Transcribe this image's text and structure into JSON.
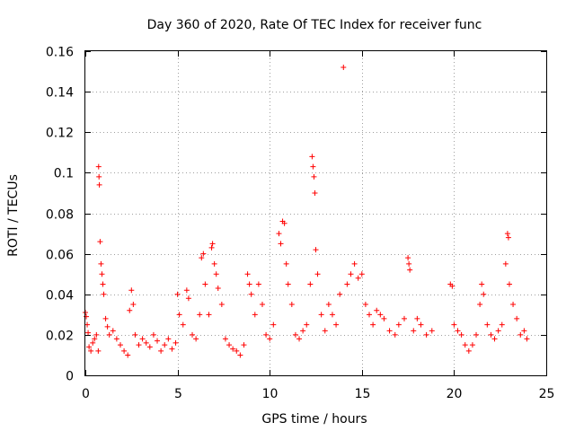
{
  "chart_data": {
    "type": "scatter",
    "title": "Day 360 of 2020, Rate Of TEC Index for receiver func",
    "xlabel": "GPS time / hours",
    "ylabel": "ROTI / TECUs",
    "xlim": [
      0,
      25
    ],
    "ylim": [
      0,
      0.16
    ],
    "x_ticks": [
      0,
      5,
      10,
      15,
      20,
      25
    ],
    "x_tick_labels": [
      "0",
      "5",
      "10",
      "15",
      "20",
      "25"
    ],
    "y_ticks": [
      0,
      0.02,
      0.04,
      0.06,
      0.08,
      0.1,
      0.12,
      0.14,
      0.16
    ],
    "y_tick_labels": [
      "0",
      "0.02",
      "0.04",
      "0.06",
      "0.08",
      "0.1",
      "0.12",
      "0.14",
      "0.16"
    ],
    "grid": true,
    "legend": "none",
    "marker": "+",
    "colors": {
      "points": "#ff0000",
      "grid": "#a0a0a0",
      "axes": "#000000"
    },
    "series": [
      {
        "points": [
          [
            0.0,
            0.031
          ],
          [
            0.05,
            0.029
          ],
          [
            0.1,
            0.025
          ],
          [
            0.15,
            0.021
          ],
          [
            0.2,
            0.014
          ],
          [
            0.3,
            0.012
          ],
          [
            0.4,
            0.016
          ],
          [
            0.5,
            0.018
          ],
          [
            0.6,
            0.02
          ],
          [
            0.7,
            0.012
          ],
          [
            0.72,
            0.103
          ],
          [
            0.74,
            0.098
          ],
          [
            0.76,
            0.094
          ],
          [
            0.8,
            0.066
          ],
          [
            0.85,
            0.055
          ],
          [
            0.9,
            0.05
          ],
          [
            0.95,
            0.045
          ],
          [
            1.0,
            0.04
          ],
          [
            1.1,
            0.028
          ],
          [
            1.2,
            0.024
          ],
          [
            1.3,
            0.02
          ],
          [
            1.5,
            0.022
          ],
          [
            1.7,
            0.018
          ],
          [
            1.9,
            0.015
          ],
          [
            2.1,
            0.012
          ],
          [
            2.3,
            0.01
          ],
          [
            2.4,
            0.032
          ],
          [
            2.5,
            0.042
          ],
          [
            2.6,
            0.035
          ],
          [
            2.7,
            0.02
          ],
          [
            2.9,
            0.015
          ],
          [
            3.1,
            0.018
          ],
          [
            3.3,
            0.016
          ],
          [
            3.5,
            0.014
          ],
          [
            3.7,
            0.02
          ],
          [
            3.9,
            0.017
          ],
          [
            4.1,
            0.012
          ],
          [
            4.3,
            0.015
          ],
          [
            4.5,
            0.018
          ],
          [
            4.7,
            0.013
          ],
          [
            4.9,
            0.016
          ],
          [
            5.0,
            0.04
          ],
          [
            5.1,
            0.03
          ],
          [
            5.3,
            0.025
          ],
          [
            5.5,
            0.042
          ],
          [
            5.6,
            0.038
          ],
          [
            5.8,
            0.02
          ],
          [
            6.0,
            0.018
          ],
          [
            6.2,
            0.03
          ],
          [
            6.3,
            0.058
          ],
          [
            6.4,
            0.06
          ],
          [
            6.5,
            0.045
          ],
          [
            6.7,
            0.03
          ],
          [
            6.85,
            0.063
          ],
          [
            6.9,
            0.065
          ],
          [
            7.0,
            0.055
          ],
          [
            7.1,
            0.05
          ],
          [
            7.2,
            0.043
          ],
          [
            7.4,
            0.035
          ],
          [
            7.6,
            0.018
          ],
          [
            7.8,
            0.015
          ],
          [
            8.0,
            0.013
          ],
          [
            8.2,
            0.012
          ],
          [
            8.4,
            0.01
          ],
          [
            8.6,
            0.015
          ],
          [
            8.8,
            0.05
          ],
          [
            8.9,
            0.045
          ],
          [
            9.0,
            0.04
          ],
          [
            9.2,
            0.03
          ],
          [
            9.4,
            0.045
          ],
          [
            9.6,
            0.035
          ],
          [
            9.8,
            0.02
          ],
          [
            10.0,
            0.018
          ],
          [
            10.2,
            0.025
          ],
          [
            10.5,
            0.07
          ],
          [
            10.6,
            0.065
          ],
          [
            10.7,
            0.076
          ],
          [
            10.8,
            0.075
          ],
          [
            10.9,
            0.055
          ],
          [
            11.0,
            0.045
          ],
          [
            11.2,
            0.035
          ],
          [
            11.4,
            0.02
          ],
          [
            11.6,
            0.018
          ],
          [
            11.8,
            0.022
          ],
          [
            12.0,
            0.025
          ],
          [
            12.2,
            0.045
          ],
          [
            12.3,
            0.108
          ],
          [
            12.35,
            0.103
          ],
          [
            12.4,
            0.098
          ],
          [
            12.45,
            0.09
          ],
          [
            12.5,
            0.062
          ],
          [
            12.6,
            0.05
          ],
          [
            12.8,
            0.03
          ],
          [
            13.0,
            0.022
          ],
          [
            13.2,
            0.035
          ],
          [
            13.4,
            0.03
          ],
          [
            13.6,
            0.025
          ],
          [
            13.8,
            0.04
          ],
          [
            14.0,
            0.152
          ],
          [
            14.2,
            0.045
          ],
          [
            14.4,
            0.05
          ],
          [
            14.6,
            0.055
          ],
          [
            14.8,
            0.048
          ],
          [
            15.0,
            0.05
          ],
          [
            15.2,
            0.035
          ],
          [
            15.4,
            0.03
          ],
          [
            15.6,
            0.025
          ],
          [
            15.8,
            0.032
          ],
          [
            16.0,
            0.03
          ],
          [
            16.2,
            0.028
          ],
          [
            16.5,
            0.022
          ],
          [
            16.8,
            0.02
          ],
          [
            17.0,
            0.025
          ],
          [
            17.3,
            0.028
          ],
          [
            17.5,
            0.058
          ],
          [
            17.55,
            0.055
          ],
          [
            17.6,
            0.052
          ],
          [
            17.8,
            0.022
          ],
          [
            18.0,
            0.028
          ],
          [
            18.2,
            0.025
          ],
          [
            18.5,
            0.02
          ],
          [
            18.8,
            0.022
          ],
          [
            19.8,
            0.045
          ],
          [
            19.9,
            0.044
          ],
          [
            20.0,
            0.025
          ],
          [
            20.2,
            0.022
          ],
          [
            20.4,
            0.02
          ],
          [
            20.6,
            0.015
          ],
          [
            20.8,
            0.012
          ],
          [
            21.0,
            0.015
          ],
          [
            21.2,
            0.02
          ],
          [
            21.4,
            0.035
          ],
          [
            21.5,
            0.045
          ],
          [
            21.6,
            0.04
          ],
          [
            21.8,
            0.025
          ],
          [
            22.0,
            0.02
          ],
          [
            22.2,
            0.018
          ],
          [
            22.4,
            0.022
          ],
          [
            22.6,
            0.025
          ],
          [
            22.8,
            0.055
          ],
          [
            22.9,
            0.07
          ],
          [
            22.95,
            0.068
          ],
          [
            23.0,
            0.045
          ],
          [
            23.2,
            0.035
          ],
          [
            23.4,
            0.028
          ],
          [
            23.6,
            0.02
          ],
          [
            23.8,
            0.022
          ],
          [
            23.95,
            0.018
          ]
        ]
      }
    ]
  }
}
